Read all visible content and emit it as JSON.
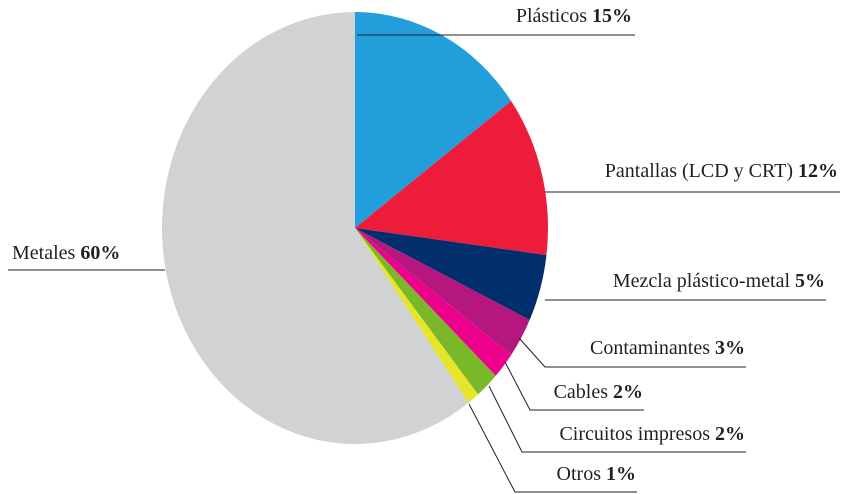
{
  "chart_data": {
    "type": "pie",
    "categories": [
      "Plásticos",
      "Pantallas (LCD y CRT)",
      "Mezcla plástico-metal",
      "Contaminantes",
      "Cables",
      "Circuitos impresos",
      "Otros",
      "Metales"
    ],
    "values": [
      15,
      12,
      5,
      3,
      2,
      2,
      1,
      60
    ],
    "value_labels": [
      "15%",
      "12%",
      "5%",
      "3%",
      "2%",
      "2%",
      "1%",
      "60%"
    ],
    "colors": [
      "#229fdb",
      "#ed1c3a",
      "#002f6c",
      "#b5177e",
      "#ec008c",
      "#7ab829",
      "#e5e52a",
      "#d1d2d4"
    ]
  }
}
